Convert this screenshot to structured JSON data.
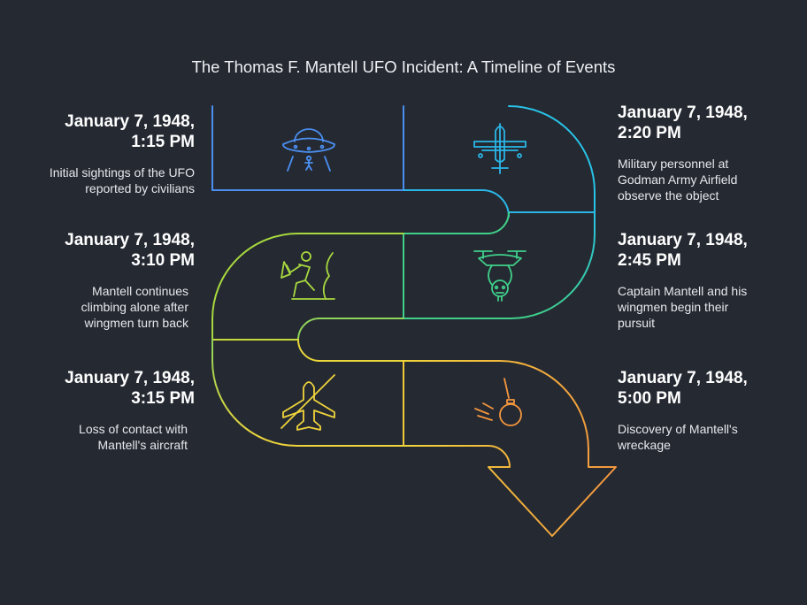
{
  "title": "The Thomas F. Mantell UFO Incident: A Timeline of Events",
  "events": [
    {
      "date_line1": "January 7, 1948,",
      "date_line2": "1:15 PM",
      "description": "Initial sightings of the UFO reported by civilians",
      "icon": "ufo-icon",
      "color": "#4a8ff0"
    },
    {
      "date_line1": "January 7, 1948,",
      "date_line2": "2:20 PM",
      "description": "Military personnel at Godman Army Airfield observe the object",
      "icon": "military-aircraft-icon",
      "color": "#2ab7e8"
    },
    {
      "date_line1": "January 7, 1948,",
      "date_line2": "2:45 PM",
      "description": "Captain Mantell and his wingmen begin their pursuit",
      "icon": "drone-pursuit-icon",
      "color": "#3fd08a"
    },
    {
      "date_line1": "January 7, 1948,",
      "date_line2": "3:10 PM",
      "description": "Mantell continues climbing alone after wingmen turn back",
      "icon": "climbing-person-icon",
      "color": "#a8d93e"
    },
    {
      "date_line1": "January 7, 1948,",
      "date_line2": "3:15 PM",
      "description": "Loss of contact with Mantell's aircraft",
      "icon": "airplane-crossed-icon",
      "color": "#f0d43a"
    },
    {
      "date_line1": "January 7, 1948,",
      "date_line2": "5:00 PM",
      "description": "Discovery of Mantell's wreckage",
      "icon": "wrecking-ball-icon",
      "color": "#f4963e"
    }
  ]
}
